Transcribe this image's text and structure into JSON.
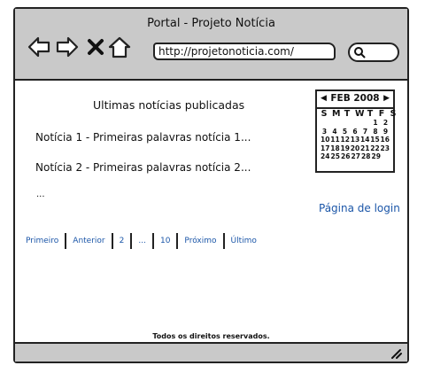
{
  "window": {
    "title": "Portal - Projeto Notícia"
  },
  "toolbar": {
    "url": "http://projetonoticia.com/",
    "icons": [
      "back-arrow-icon",
      "forward-arrow-icon",
      "stop-icon",
      "home-icon",
      "search-icon"
    ]
  },
  "main": {
    "heading": "Ultimas notícias publicadas",
    "news": [
      {
        "text": "Notícia 1 - Primeiras palavras notícia 1..."
      },
      {
        "text": "Notícia 2 - Primeiras palavras notícia 2..."
      }
    ],
    "ellipsis": "...",
    "login_link": "Página de login",
    "pagination": [
      "Primeiro",
      "Anterior",
      "2",
      "...",
      "10",
      "Próximo",
      "Último"
    ],
    "footer": "Todos os direitos reservados."
  },
  "calendar": {
    "prev": "◀",
    "month": "FEB 2008",
    "next": "▶",
    "weekdays": [
      "S",
      "M",
      "T",
      "W",
      "T",
      "F",
      "S"
    ],
    "rows": [
      [
        "",
        "",
        "",
        "",
        "",
        "1",
        "2"
      ],
      [
        "3",
        "4",
        "5",
        "6",
        "7",
        "8",
        "9"
      ],
      [
        "10",
        "11",
        "12",
        "13",
        "14",
        "15",
        "16"
      ],
      [
        "17",
        "18",
        "19",
        "20",
        "21",
        "22",
        "23"
      ],
      [
        "24",
        "25",
        "26",
        "27",
        "28",
        "29",
        ""
      ]
    ]
  },
  "colors": {
    "chrome": "#c9c9c9",
    "link": "#1b56a8",
    "border": "#222222"
  }
}
